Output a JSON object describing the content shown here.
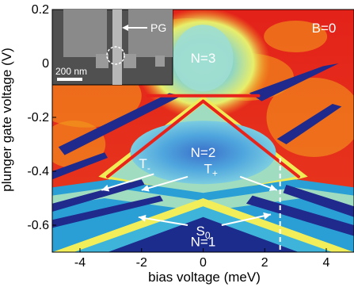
{
  "chart_data": {
    "type": "heatmap",
    "xlabel": "bias voltage (meV)",
    "ylabel": "plunger gate voltage (V)",
    "xlim": [
      -4.9,
      4.9
    ],
    "ylim": [
      -0.7,
      0.2
    ],
    "x_ticks": [
      -4,
      -2,
      0,
      2,
      4
    ],
    "y_ticks": [
      0.2,
      0,
      -0.2,
      -0.4,
      -0.6
    ],
    "x_tick_labels": [
      "-4",
      "-2",
      "0",
      "2",
      "4"
    ],
    "y_tick_labels": [
      "0.2",
      "0",
      "-0.2",
      "-0.4",
      "-0.6"
    ],
    "colormap": [
      "#1f2a8c",
      "#27a4d6",
      "#9fdcc0",
      "#f2f05a",
      "#f7a21b",
      "#e8231b"
    ],
    "field_label": "B=0",
    "regions": [
      {
        "label": "N=3",
        "x": 0.0,
        "y": 0.02
      },
      {
        "label": "N=2",
        "x": 0.0,
        "y": -0.33
      },
      {
        "label": "N=1",
        "x": 0.0,
        "y": -0.66
      }
    ],
    "annotations": [
      {
        "label": "T-",
        "x": -1.9,
        "y": -0.37
      },
      {
        "label": "T+",
        "x": 0.25,
        "y": -0.39
      },
      {
        "label": "S0",
        "x": 0.0,
        "y": -0.62
      }
    ],
    "arrows": [
      {
        "from": [
          -1.6,
          -0.41
        ],
        "to": [
          -3.3,
          -0.47
        ]
      },
      {
        "from": [
          -0.5,
          -0.42
        ],
        "to": [
          -2.0,
          -0.47
        ]
      },
      {
        "from": [
          1.2,
          -0.42
        ],
        "to": [
          2.4,
          -0.47
        ]
      },
      {
        "from": [
          -0.5,
          -0.6
        ],
        "to": [
          -2.1,
          -0.57
        ]
      },
      {
        "from": [
          0.6,
          -0.6
        ],
        "to": [
          2.2,
          -0.56
        ]
      }
    ],
    "dashed_line_x": 2.5,
    "diamond_vertices": [
      {
        "name": "top",
        "x": 0.0,
        "y": -0.16
      },
      {
        "name": "left",
        "x": -3.0,
        "y": -0.42
      },
      {
        "name": "bottom",
        "x": 0.0,
        "y": -0.48
      },
      {
        "name": "right",
        "x": 3.0,
        "y": -0.42
      }
    ],
    "inset": {
      "pg_label": "PG",
      "scale_bar_label": "200 nm"
    }
  }
}
